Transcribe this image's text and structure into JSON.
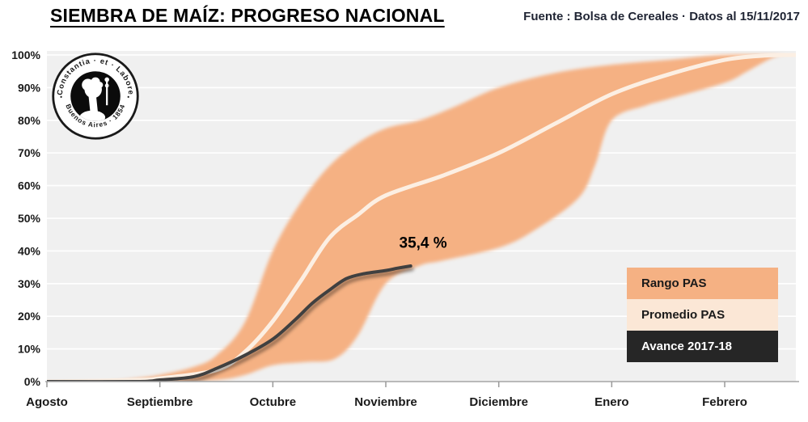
{
  "header": {
    "title": "SIEMBRA DE MAÍZ: PROGRESO NACIONAL",
    "source": "Fuente : Bolsa de Cereales · Datos al 15/11/2017"
  },
  "logo": {
    "top_text": "Constantia · et · Labore",
    "bottom_text": "Buenos Aires · 1854",
    "left_mark": "•",
    "right_mark": "•"
  },
  "legend": {
    "items": [
      {
        "label": "Rango PAS",
        "bg": "#F5B183",
        "text_color": "#1A1A1A"
      },
      {
        "label": "Promedio PAS",
        "bg": "#FBE7D6",
        "text_color": "#1A1A1A"
      },
      {
        "label": "Avance 2017-18",
        "bg": "#262626",
        "text_color": "#FFFFFF"
      }
    ]
  },
  "chart_data": {
    "type": "area",
    "title": "SIEMBRA DE MAÍZ: PROGRESO NACIONAL",
    "xlabel": "",
    "ylabel": "",
    "x_axis": {
      "categories": [
        "Agosto",
        "Septiembre",
        "Octubre",
        "Noviembre",
        "Diciembre",
        "Enero",
        "Febrero"
      ],
      "range_months": [
        0,
        6.63
      ],
      "grid": false
    },
    "y_axis": {
      "tick_labels": [
        "0%",
        "10%",
        "20%",
        "30%",
        "40%",
        "50%",
        "60%",
        "70%",
        "80%",
        "90%",
        "100%"
      ],
      "range": [
        0,
        100
      ],
      "grid": true
    },
    "series": [
      {
        "name": "Rango PAS",
        "kind": "band",
        "color": "#F5B183",
        "upper": [
          [
            0,
            0
          ],
          [
            0.5,
            0
          ],
          [
            0.8,
            1
          ],
          [
            1,
            2
          ],
          [
            1.3,
            4.5
          ],
          [
            1.5,
            8
          ],
          [
            1.75,
            18
          ],
          [
            2,
            40
          ],
          [
            2.25,
            55
          ],
          [
            2.5,
            66
          ],
          [
            2.75,
            73
          ],
          [
            3,
            77.5
          ],
          [
            3.3,
            80
          ],
          [
            3.6,
            84
          ],
          [
            4,
            90
          ],
          [
            4.5,
            94.5
          ],
          [
            5,
            97
          ],
          [
            5.5,
            98.5
          ],
          [
            6,
            100
          ],
          [
            6.63,
            100
          ]
        ],
        "lower": [
          [
            0,
            0
          ],
          [
            1,
            0
          ],
          [
            1.5,
            0.5
          ],
          [
            1.75,
            2
          ],
          [
            2,
            5
          ],
          [
            2.3,
            6
          ],
          [
            2.55,
            7
          ],
          [
            2.75,
            14
          ],
          [
            3,
            30
          ],
          [
            3.3,
            35.5
          ],
          [
            3.5,
            37
          ],
          [
            4,
            41
          ],
          [
            4.3,
            46
          ],
          [
            4.7,
            56
          ],
          [
            4.85,
            66
          ],
          [
            5,
            80
          ],
          [
            5.3,
            84.5
          ],
          [
            5.5,
            86.5
          ],
          [
            6,
            91.5
          ],
          [
            6.2,
            95
          ],
          [
            6.45,
            99.5
          ],
          [
            6.63,
            100
          ]
        ]
      },
      {
        "name": "Promedio PAS",
        "kind": "line",
        "color": "#FCEFE3",
        "points": [
          [
            0,
            0
          ],
          [
            0.8,
            0.5
          ],
          [
            1,
            1
          ],
          [
            1.5,
            3.5
          ],
          [
            1.75,
            9
          ],
          [
            2,
            18.5
          ],
          [
            2.25,
            31
          ],
          [
            2.5,
            44
          ],
          [
            2.75,
            51
          ],
          [
            3,
            57
          ],
          [
            3.5,
            63
          ],
          [
            4,
            70
          ],
          [
            4.5,
            79
          ],
          [
            5,
            88
          ],
          [
            5.5,
            94
          ],
          [
            6,
            98.5
          ],
          [
            6.35,
            99.8
          ],
          [
            6.63,
            100
          ]
        ]
      },
      {
        "name": "Avance 2017-18",
        "kind": "line",
        "color": "#3F3F3F",
        "points": [
          [
            0,
            0
          ],
          [
            0.8,
            0
          ],
          [
            1,
            0.5
          ],
          [
            1.3,
            1.5
          ],
          [
            1.5,
            4
          ],
          [
            1.75,
            8
          ],
          [
            2,
            13
          ],
          [
            2.2,
            19
          ],
          [
            2.35,
            24
          ],
          [
            2.5,
            28
          ],
          [
            2.65,
            31.5
          ],
          [
            2.8,
            33
          ],
          [
            3,
            34
          ],
          [
            3.1,
            34.7
          ],
          [
            3.22,
            35.4
          ]
        ],
        "end_value": 35.4
      }
    ],
    "annotation": {
      "text": "35,4 %",
      "x": 3.33,
      "y": 41
    },
    "legend_position": "bottom-right",
    "colors": {
      "plot_bg": "#F0F0F0",
      "gridline": "#FFFFFF",
      "axis_line": "#A6A6A6",
      "tick": "#999999",
      "label_text": "#1A1A1A"
    }
  }
}
